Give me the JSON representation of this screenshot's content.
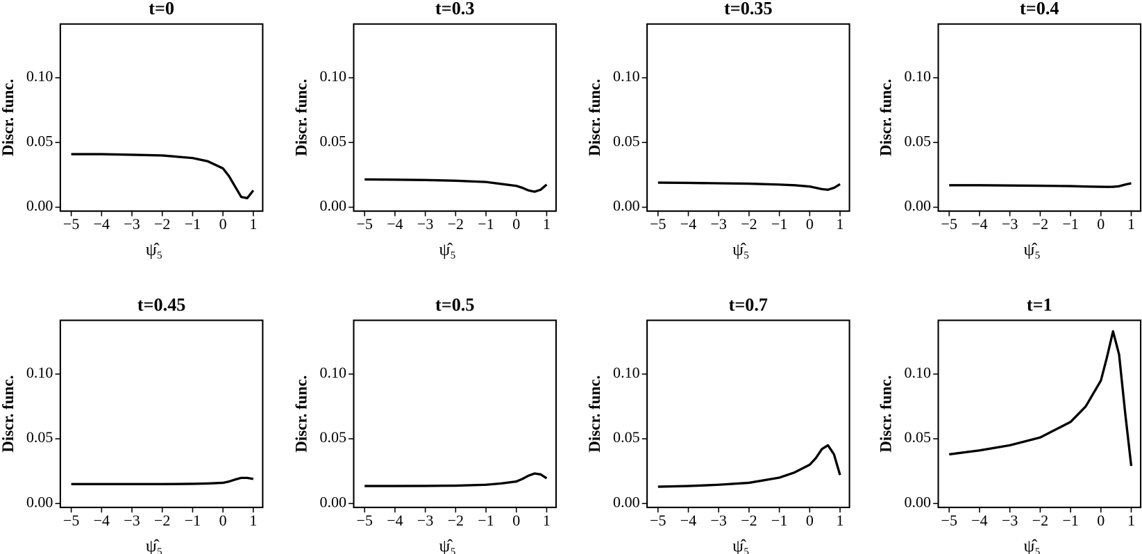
{
  "chart_data": [
    {
      "type": "line",
      "title": "t=0",
      "ylabel": "Discr. func.",
      "xlabel": "ψ̂₅",
      "color": "#000000",
      "x": [
        -5,
        -4,
        -3,
        -2,
        -1,
        -0.5,
        0,
        0.2,
        0.4,
        0.6,
        0.8,
        1
      ],
      "values": [
        0.041,
        0.041,
        0.0405,
        0.04,
        0.038,
        0.0355,
        0.03,
        0.024,
        0.016,
        0.008,
        0.007,
        0.013
      ],
      "xlim": [
        -5.36,
        1.31
      ],
      "ylim": [
        -0.003,
        0.1415
      ],
      "xticks": [
        {
          "value": -5,
          "label": "−5"
        },
        {
          "value": -4,
          "label": "−4"
        },
        {
          "value": -3,
          "label": "−3"
        },
        {
          "value": -2,
          "label": "−2"
        },
        {
          "value": -1,
          "label": "−1"
        },
        0,
        1
      ],
      "yticks": [
        {
          "value": 0,
          "label": "0.00"
        },
        {
          "value": 0.05,
          "label": "0.05"
        },
        {
          "value": 0.1,
          "label": "0.10"
        }
      ]
    },
    {
      "type": "line",
      "title": "t=0.3",
      "ylabel": "Discr. func.",
      "xlabel": "ψ̂₅",
      "color": "#000000",
      "x": [
        -5,
        -4,
        -3,
        -2,
        -1,
        -0.5,
        0,
        0.2,
        0.4,
        0.6,
        0.8,
        1
      ],
      "values": [
        0.0215,
        0.0213,
        0.021,
        0.0205,
        0.0195,
        0.018,
        0.0165,
        0.015,
        0.013,
        0.012,
        0.0135,
        0.0175
      ],
      "xlim": [
        -5.36,
        1.31
      ],
      "ylim": [
        -0.003,
        0.1415
      ],
      "xticks": [
        {
          "value": -5,
          "label": "−5"
        },
        {
          "value": -4,
          "label": "−4"
        },
        {
          "value": -3,
          "label": "−3"
        },
        {
          "value": -2,
          "label": "−2"
        },
        {
          "value": -1,
          "label": "−1"
        },
        0,
        1
      ],
      "yticks": [
        {
          "value": 0,
          "label": "0.00"
        },
        {
          "value": 0.05,
          "label": "0.05"
        },
        {
          "value": 0.1,
          "label": "0.10"
        }
      ]
    },
    {
      "type": "line",
      "title": "t=0.35",
      "ylabel": "Discr. func.",
      "xlabel": "ψ̂₅",
      "color": "#000000",
      "x": [
        -5,
        -4,
        -3,
        -2,
        -1,
        -0.5,
        0,
        0.2,
        0.4,
        0.6,
        0.8,
        1
      ],
      "values": [
        0.019,
        0.0188,
        0.0185,
        0.0182,
        0.0175,
        0.017,
        0.016,
        0.015,
        0.014,
        0.0135,
        0.015,
        0.0178
      ],
      "xlim": [
        -5.36,
        1.31
      ],
      "ylim": [
        -0.003,
        0.1415
      ],
      "xticks": [
        {
          "value": -5,
          "label": "−5"
        },
        {
          "value": -4,
          "label": "−4"
        },
        {
          "value": -3,
          "label": "−3"
        },
        {
          "value": -2,
          "label": "−2"
        },
        {
          "value": -1,
          "label": "−1"
        },
        0,
        1
      ],
      "yticks": [
        {
          "value": 0,
          "label": "0.00"
        },
        {
          "value": 0.05,
          "label": "0.05"
        },
        {
          "value": 0.1,
          "label": "0.10"
        }
      ]
    },
    {
      "type": "line",
      "title": "t=0.4",
      "ylabel": "Discr. func.",
      "xlabel": "ψ̂₅",
      "color": "#000000",
      "x": [
        -5,
        -4,
        -3,
        -2,
        -1,
        -0.5,
        0,
        0.2,
        0.4,
        0.6,
        0.8,
        1
      ],
      "values": [
        0.017,
        0.017,
        0.0168,
        0.0166,
        0.0163,
        0.016,
        0.0158,
        0.0157,
        0.0158,
        0.0162,
        0.0175,
        0.0185
      ],
      "xlim": [
        -5.36,
        1.31
      ],
      "ylim": [
        -0.003,
        0.1415
      ],
      "xticks": [
        {
          "value": -5,
          "label": "−5"
        },
        {
          "value": -4,
          "label": "−4"
        },
        {
          "value": -3,
          "label": "−3"
        },
        {
          "value": -2,
          "label": "−2"
        },
        {
          "value": -1,
          "label": "−1"
        },
        0,
        1
      ],
      "yticks": [
        {
          "value": 0,
          "label": "0.00"
        },
        {
          "value": 0.05,
          "label": "0.05"
        },
        {
          "value": 0.1,
          "label": "0.10"
        }
      ]
    },
    {
      "type": "line",
      "title": "t=0.45",
      "ylabel": "Discr. func.",
      "xlabel": "ψ̂₅",
      "color": "#000000",
      "x": [
        -5,
        -4,
        -3,
        -2,
        -1,
        -0.5,
        0,
        0.2,
        0.4,
        0.6,
        0.8,
        1
      ],
      "values": [
        0.015,
        0.015,
        0.015,
        0.015,
        0.0152,
        0.0155,
        0.016,
        0.017,
        0.0185,
        0.0198,
        0.0198,
        0.019
      ],
      "xlim": [
        -5.36,
        1.31
      ],
      "ylim": [
        -0.003,
        0.1415
      ],
      "xticks": [
        {
          "value": -5,
          "label": "−5"
        },
        {
          "value": -4,
          "label": "−4"
        },
        {
          "value": -3,
          "label": "−3"
        },
        {
          "value": -2,
          "label": "−2"
        },
        {
          "value": -1,
          "label": "−1"
        },
        0,
        1
      ],
      "yticks": [
        {
          "value": 0,
          "label": "0.00"
        },
        {
          "value": 0.05,
          "label": "0.05"
        },
        {
          "value": 0.1,
          "label": "0.10"
        }
      ]
    },
    {
      "type": "line",
      "title": "t=0.5",
      "ylabel": "Discr. func.",
      "xlabel": "ψ̂₅",
      "color": "#000000",
      "x": [
        -5,
        -4,
        -3,
        -2,
        -1,
        -0.5,
        0,
        0.2,
        0.4,
        0.6,
        0.8,
        1
      ],
      "values": [
        0.0135,
        0.0135,
        0.0136,
        0.0138,
        0.0145,
        0.0155,
        0.017,
        0.019,
        0.0215,
        0.0232,
        0.0225,
        0.0195
      ],
      "xlim": [
        -5.36,
        1.31
      ],
      "ylim": [
        -0.003,
        0.1415
      ],
      "xticks": [
        {
          "value": -5,
          "label": "−5"
        },
        {
          "value": -4,
          "label": "−4"
        },
        {
          "value": -3,
          "label": "−3"
        },
        {
          "value": -2,
          "label": "−2"
        },
        {
          "value": -1,
          "label": "−1"
        },
        0,
        1
      ],
      "yticks": [
        {
          "value": 0,
          "label": "0.00"
        },
        {
          "value": 0.05,
          "label": "0.05"
        },
        {
          "value": 0.1,
          "label": "0.10"
        }
      ]
    },
    {
      "type": "line",
      "title": "t=0.7",
      "ylabel": "Discr. func.",
      "xlabel": "ψ̂₅",
      "color": "#000000",
      "x": [
        -5,
        -4,
        -3,
        -2,
        -1,
        -0.5,
        0,
        0.2,
        0.4,
        0.6,
        0.8,
        1
      ],
      "values": [
        0.013,
        0.0135,
        0.0145,
        0.016,
        0.02,
        0.024,
        0.03,
        0.035,
        0.042,
        0.045,
        0.038,
        0.022
      ],
      "xlim": [
        -5.36,
        1.31
      ],
      "ylim": [
        -0.003,
        0.1415
      ],
      "xticks": [
        {
          "value": -5,
          "label": "−5"
        },
        {
          "value": -4,
          "label": "−4"
        },
        {
          "value": -3,
          "label": "−3"
        },
        {
          "value": -2,
          "label": "−2"
        },
        {
          "value": -1,
          "label": "−1"
        },
        0,
        1
      ],
      "yticks": [
        {
          "value": 0,
          "label": "0.00"
        },
        {
          "value": 0.05,
          "label": "0.05"
        },
        {
          "value": 0.1,
          "label": "0.10"
        }
      ]
    },
    {
      "type": "line",
      "title": "t=1",
      "ylabel": "Discr. func.",
      "xlabel": "ψ̂₅",
      "color": "#000000",
      "x": [
        -5,
        -4,
        -3,
        -2,
        -1,
        -0.5,
        0,
        0.2,
        0.4,
        0.6,
        0.8,
        1
      ],
      "values": [
        0.038,
        0.041,
        0.045,
        0.051,
        0.063,
        0.075,
        0.095,
        0.113,
        0.133,
        0.115,
        0.07,
        0.029
      ],
      "xlim": [
        -5.36,
        1.31
      ],
      "ylim": [
        -0.003,
        0.1415
      ],
      "xticks": [
        {
          "value": -5,
          "label": "−5"
        },
        {
          "value": -4,
          "label": "−4"
        },
        {
          "value": -3,
          "label": "−3"
        },
        {
          "value": -2,
          "label": "−2"
        },
        {
          "value": -1,
          "label": "−1"
        },
        0,
        1
      ],
      "yticks": [
        {
          "value": 0,
          "label": "0.00"
        },
        {
          "value": 0.05,
          "label": "0.05"
        },
        {
          "value": 0.1,
          "label": "0.10"
        }
      ]
    }
  ]
}
